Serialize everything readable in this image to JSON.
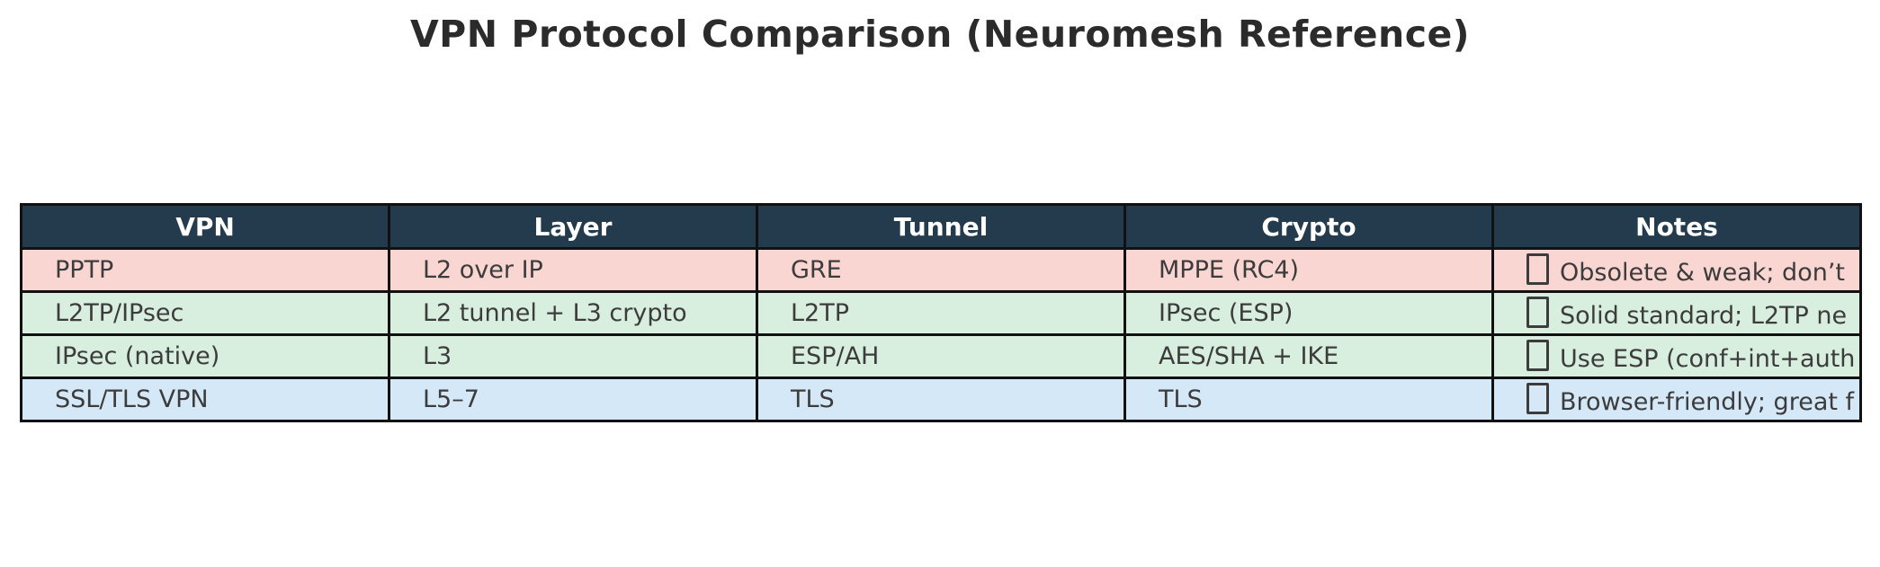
{
  "title": "VPN Protocol Comparison (Neuromesh Reference)",
  "colors": {
    "title_text": "#2b2b2b",
    "header_bg": "#233b4d",
    "header_text": "#ffffff",
    "border": "#111111",
    "cell_text": "#3c3c3c",
    "row_danger_pink": "#f9d6d2",
    "row_ok_green": "#d8eede",
    "row_info_blue": "#d5e8f7"
  },
  "table": {
    "headers": [
      "VPN",
      "Layer",
      "Tunnel",
      "Crypto",
      "Notes"
    ],
    "rows": [
      {
        "vpn": "PPTP",
        "layer": "L2 over IP",
        "tunnel": "GRE",
        "crypto": "MPPE (RC4)",
        "note_icon": "missing-glyph-box",
        "note": "Obsolete & weak; don’t",
        "color": "#f9d6d2"
      },
      {
        "vpn": "L2TP/IPsec",
        "layer": "L2 tunnel + L3 crypto",
        "tunnel": "L2TP",
        "crypto": "IPsec (ESP)",
        "note_icon": "missing-glyph-box",
        "note": "Solid standard; L2TP ne",
        "color": "#d8eede"
      },
      {
        "vpn": "IPsec (native)",
        "layer": "L3",
        "tunnel": "ESP/AH",
        "crypto": "AES/SHA + IKE",
        "note_icon": "missing-glyph-box",
        "note": "Use ESP (conf+int+auth",
        "color": "#d8eede"
      },
      {
        "vpn": "SSL/TLS VPN",
        "layer": "L5–7",
        "tunnel": "TLS",
        "crypto": "TLS",
        "note_icon": "missing-glyph-box",
        "note": "Browser-friendly; great f",
        "color": "#d5e8f7"
      }
    ]
  },
  "chart_data": {
    "type": "table",
    "title": "VPN Protocol Comparison (Neuromesh Reference)",
    "columns": [
      "VPN",
      "Layer",
      "Tunnel",
      "Crypto",
      "Notes"
    ],
    "rows": [
      [
        "PPTP",
        "L2 over IP",
        "GRE",
        "MPPE (RC4)",
        "Obsolete & weak; don’t"
      ],
      [
        "L2TP/IPsec",
        "L2 tunnel + L3 crypto",
        "L2TP",
        "IPsec (ESP)",
        "Solid standard; L2TP ne"
      ],
      [
        "IPsec (native)",
        "L3",
        "ESP/AH",
        "AES/SHA + IKE",
        "Use ESP (conf+int+auth"
      ],
      [
        "SSL/TLS VPN",
        "L5–7",
        "TLS",
        "TLS",
        "Browser-friendly; great f"
      ]
    ],
    "row_colors": [
      "#f9d6d2",
      "#d8eede",
      "#d8eede",
      "#d5e8f7"
    ],
    "notes_prefix_icon": "missing-glyph-box",
    "notes_truncated_at_right_edge": true,
    "layout_hints": "dark navy header row, black grid borders, notes column text overflows table right border and is clipped by image edge"
  }
}
